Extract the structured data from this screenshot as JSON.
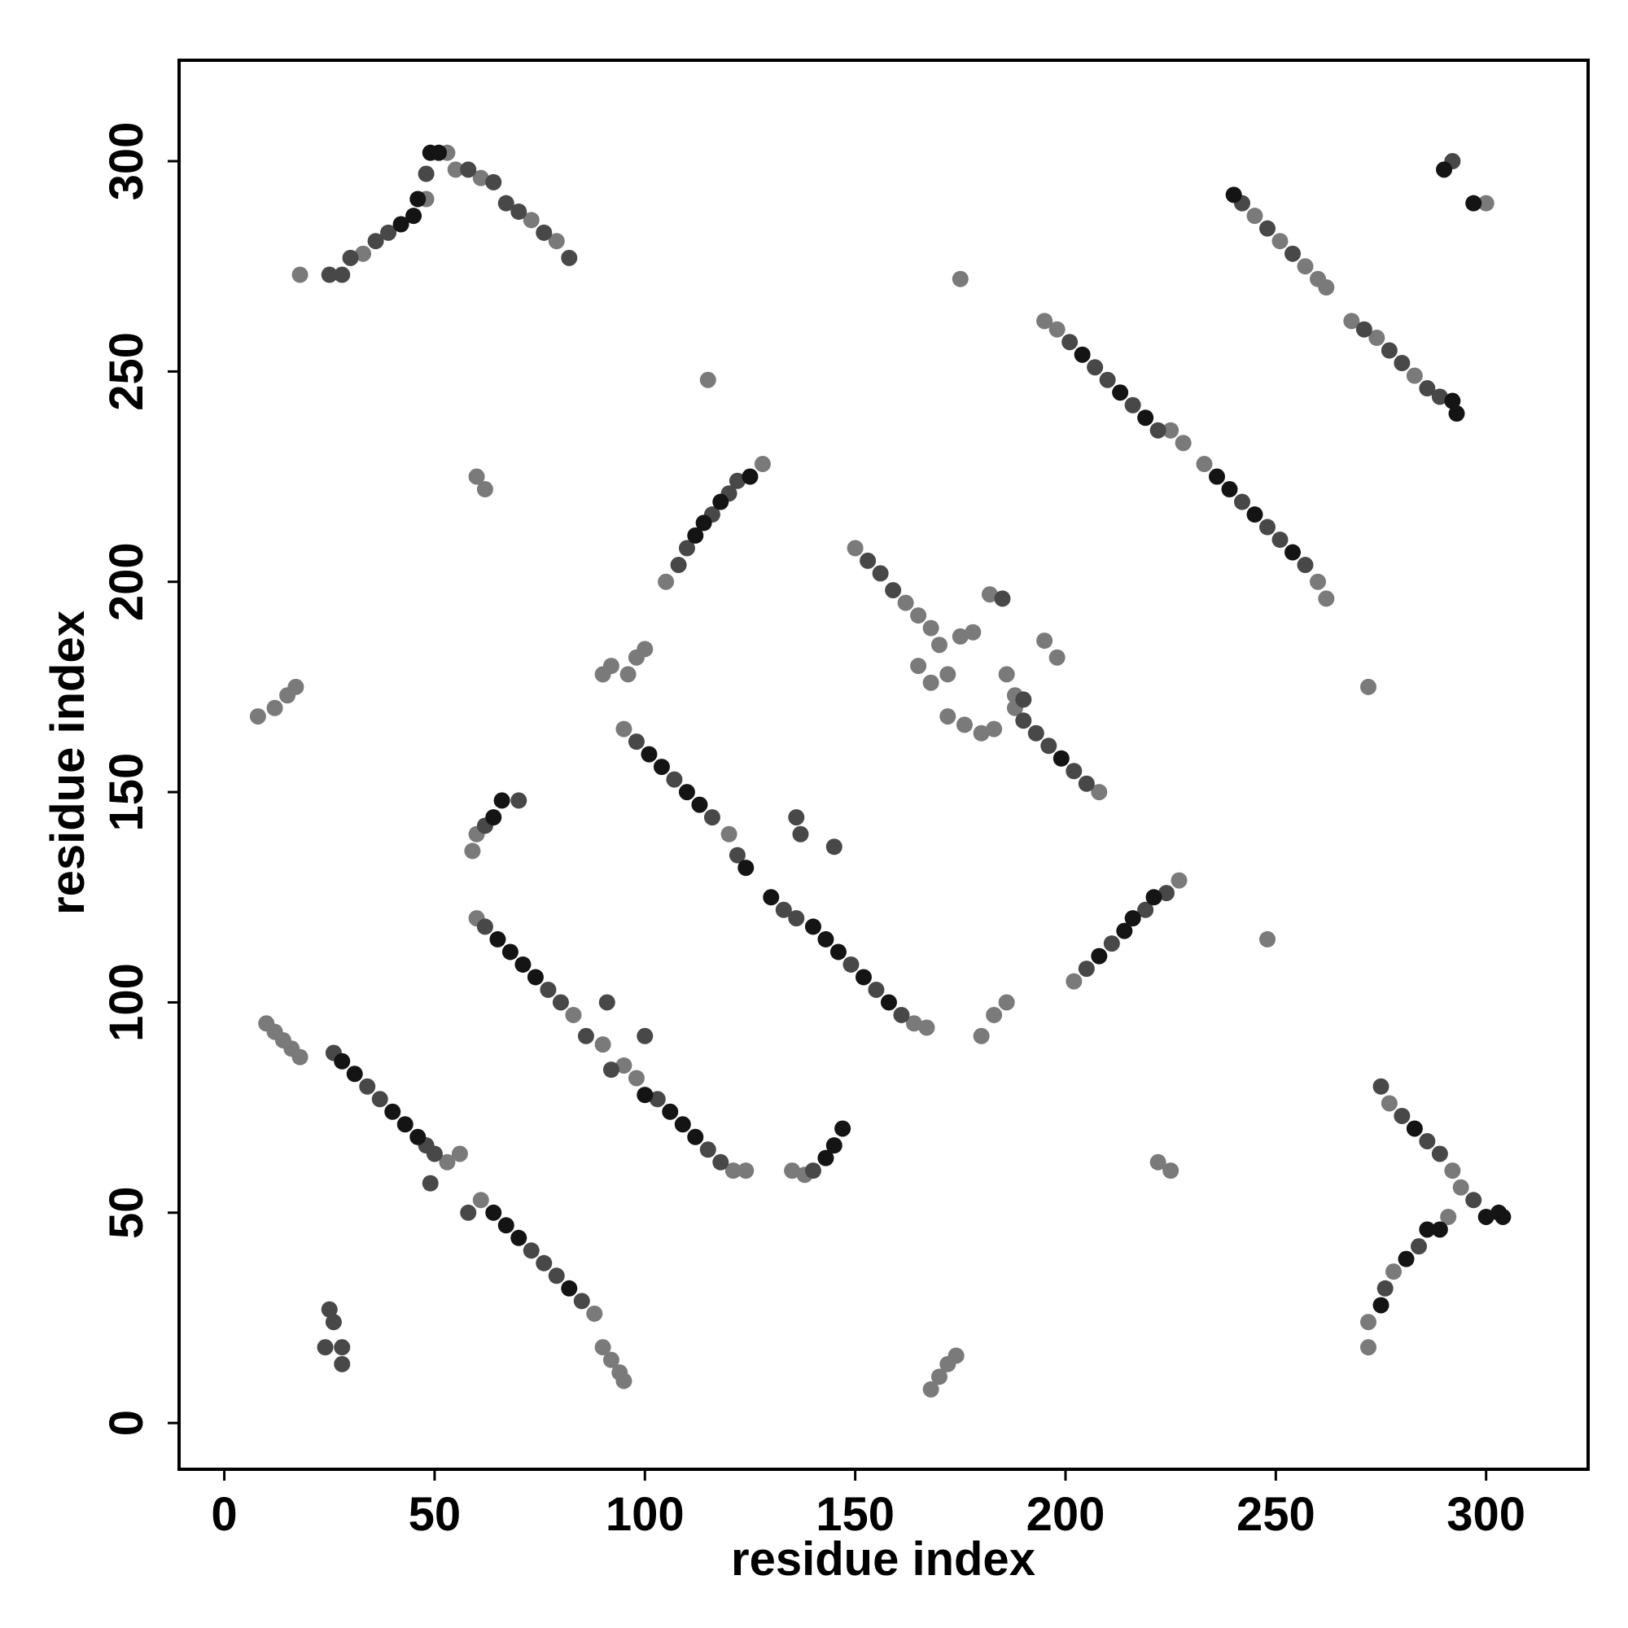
{
  "chart_data": {
    "type": "scatter",
    "x_label": "residue index",
    "y_label": "residue index",
    "xlim": [
      -10.75,
      324.25
    ],
    "ylim": [
      -11,
      324
    ],
    "xticks": [
      0,
      50,
      100,
      150,
      200,
      250,
      300
    ],
    "yticks": [
      0,
      50,
      100,
      150,
      200,
      250,
      300
    ],
    "series": [
      {
        "color": "#7a7a7a",
        "x": [
          10,
          12,
          14,
          16,
          18,
          53,
          56,
          61,
          88,
          90,
          92,
          94,
          95,
          60,
          83,
          90,
          95,
          98,
          121,
          124,
          95,
          120,
          164,
          167,
          150,
          162,
          165,
          168,
          208,
          165,
          168,
          172,
          175,
          178,
          172,
          176,
          180,
          182,
          186,
          188,
          183,
          188,
          195,
          198,
          170,
          180,
          183,
          186,
          195,
          198,
          225,
          228,
          233,
          260,
          262,
          245,
          251,
          257,
          260,
          262,
          268,
          274,
          283,
          18,
          33,
          48,
          53,
          55,
          61,
          73,
          79,
          272,
          272,
          278,
          291,
          277,
          292,
          294,
          105,
          128,
          202,
          227,
          60,
          59,
          135,
          138,
          8,
          12,
          15,
          17,
          168,
          170,
          172,
          174,
          300,
          62,
          60,
          115,
          175,
          272,
          248,
          222,
          225,
          90,
          92,
          98,
          100,
          96
        ],
        "y": [
          95,
          93,
          91,
          89,
          87,
          62,
          64,
          53,
          26,
          18,
          15,
          12,
          10,
          120,
          97,
          90,
          85,
          82,
          60,
          60,
          165,
          140,
          95,
          94,
          208,
          195,
          192,
          189,
          150,
          180,
          176,
          178,
          187,
          188,
          168,
          166,
          164,
          197,
          178,
          173,
          165,
          170,
          186,
          182,
          185,
          92,
          97,
          100,
          262,
          260,
          236,
          233,
          228,
          200,
          196,
          287,
          281,
          275,
          272,
          270,
          262,
          258,
          249,
          273,
          278,
          291,
          302,
          298,
          296,
          286,
          281,
          18,
          24,
          36,
          49,
          76,
          60,
          56,
          200,
          228,
          105,
          129,
          140,
          136,
          60,
          59,
          168,
          170,
          173,
          175,
          8,
          11,
          14,
          16,
          290,
          222,
          225,
          248,
          272,
          175,
          115,
          62,
          60,
          178,
          180,
          182,
          184,
          178
        ]
      },
      {
        "color": "#484848",
        "x": [
          26,
          34,
          37,
          48,
          50,
          49,
          58,
          73,
          76,
          79,
          85,
          62,
          77,
          80,
          86,
          92,
          103,
          115,
          118,
          98,
          107,
          116,
          122,
          133,
          136,
          149,
          155,
          161,
          153,
          156,
          159,
          190,
          193,
          196,
          202,
          205,
          201,
          207,
          210,
          216,
          222,
          242,
          248,
          251,
          257,
          242,
          248,
          254,
          271,
          277,
          280,
          286,
          289,
          25,
          28,
          30,
          36,
          39,
          48,
          58,
          64,
          67,
          70,
          76,
          82,
          276,
          284,
          275,
          280,
          286,
          289,
          297,
          108,
          110,
          116,
          120,
          122,
          205,
          211,
          219,
          224,
          62,
          70,
          140,
          292,
          25,
          26,
          24,
          28,
          28,
          91,
          100,
          137,
          145,
          136,
          190,
          185
        ],
        "y": [
          88,
          80,
          77,
          66,
          64,
          57,
          50,
          41,
          38,
          35,
          29,
          118,
          103,
          100,
          92,
          84,
          77,
          65,
          62,
          162,
          153,
          144,
          135,
          122,
          120,
          109,
          103,
          97,
          205,
          202,
          198,
          167,
          164,
          161,
          155,
          152,
          257,
          251,
          248,
          242,
          236,
          219,
          213,
          210,
          204,
          290,
          284,
          278,
          260,
          255,
          252,
          246,
          244,
          273,
          273,
          277,
          281,
          283,
          297,
          298,
          295,
          290,
          288,
          283,
          277,
          32,
          42,
          80,
          73,
          67,
          64,
          53,
          204,
          208,
          216,
          221,
          224,
          108,
          114,
          122,
          126,
          142,
          148,
          60,
          300,
          27,
          24,
          18,
          18,
          14,
          100,
          92,
          140,
          137,
          144,
          172,
          196
        ]
      },
      {
        "color": "#141414",
        "x": [
          28,
          31,
          40,
          43,
          46,
          64,
          67,
          70,
          82,
          65,
          68,
          71,
          74,
          100,
          106,
          109,
          112,
          101,
          104,
          110,
          113,
          124,
          130,
          140,
          143,
          146,
          152,
          158,
          199,
          204,
          213,
          219,
          236,
          239,
          245,
          254,
          240,
          292,
          293,
          42,
          45,
          46,
          49,
          51,
          275,
          281,
          286,
          289,
          283,
          300,
          303,
          304,
          112,
          114,
          118,
          125,
          208,
          214,
          216,
          221,
          64,
          66,
          143,
          145,
          147,
          290,
          297
        ],
        "y": [
          86,
          83,
          74,
          71,
          68,
          50,
          47,
          44,
          32,
          115,
          112,
          109,
          106,
          78,
          74,
          71,
          68,
          159,
          156,
          150,
          147,
          132,
          125,
          118,
          115,
          112,
          106,
          100,
          158,
          254,
          245,
          239,
          225,
          222,
          216,
          207,
          292,
          243,
          240,
          285,
          287,
          291,
          302,
          302,
          28,
          39,
          46,
          46,
          70,
          49,
          50,
          49,
          211,
          214,
          219,
          225,
          111,
          117,
          120,
          125,
          144,
          148,
          63,
          66,
          70,
          298,
          290
        ]
      }
    ]
  }
}
